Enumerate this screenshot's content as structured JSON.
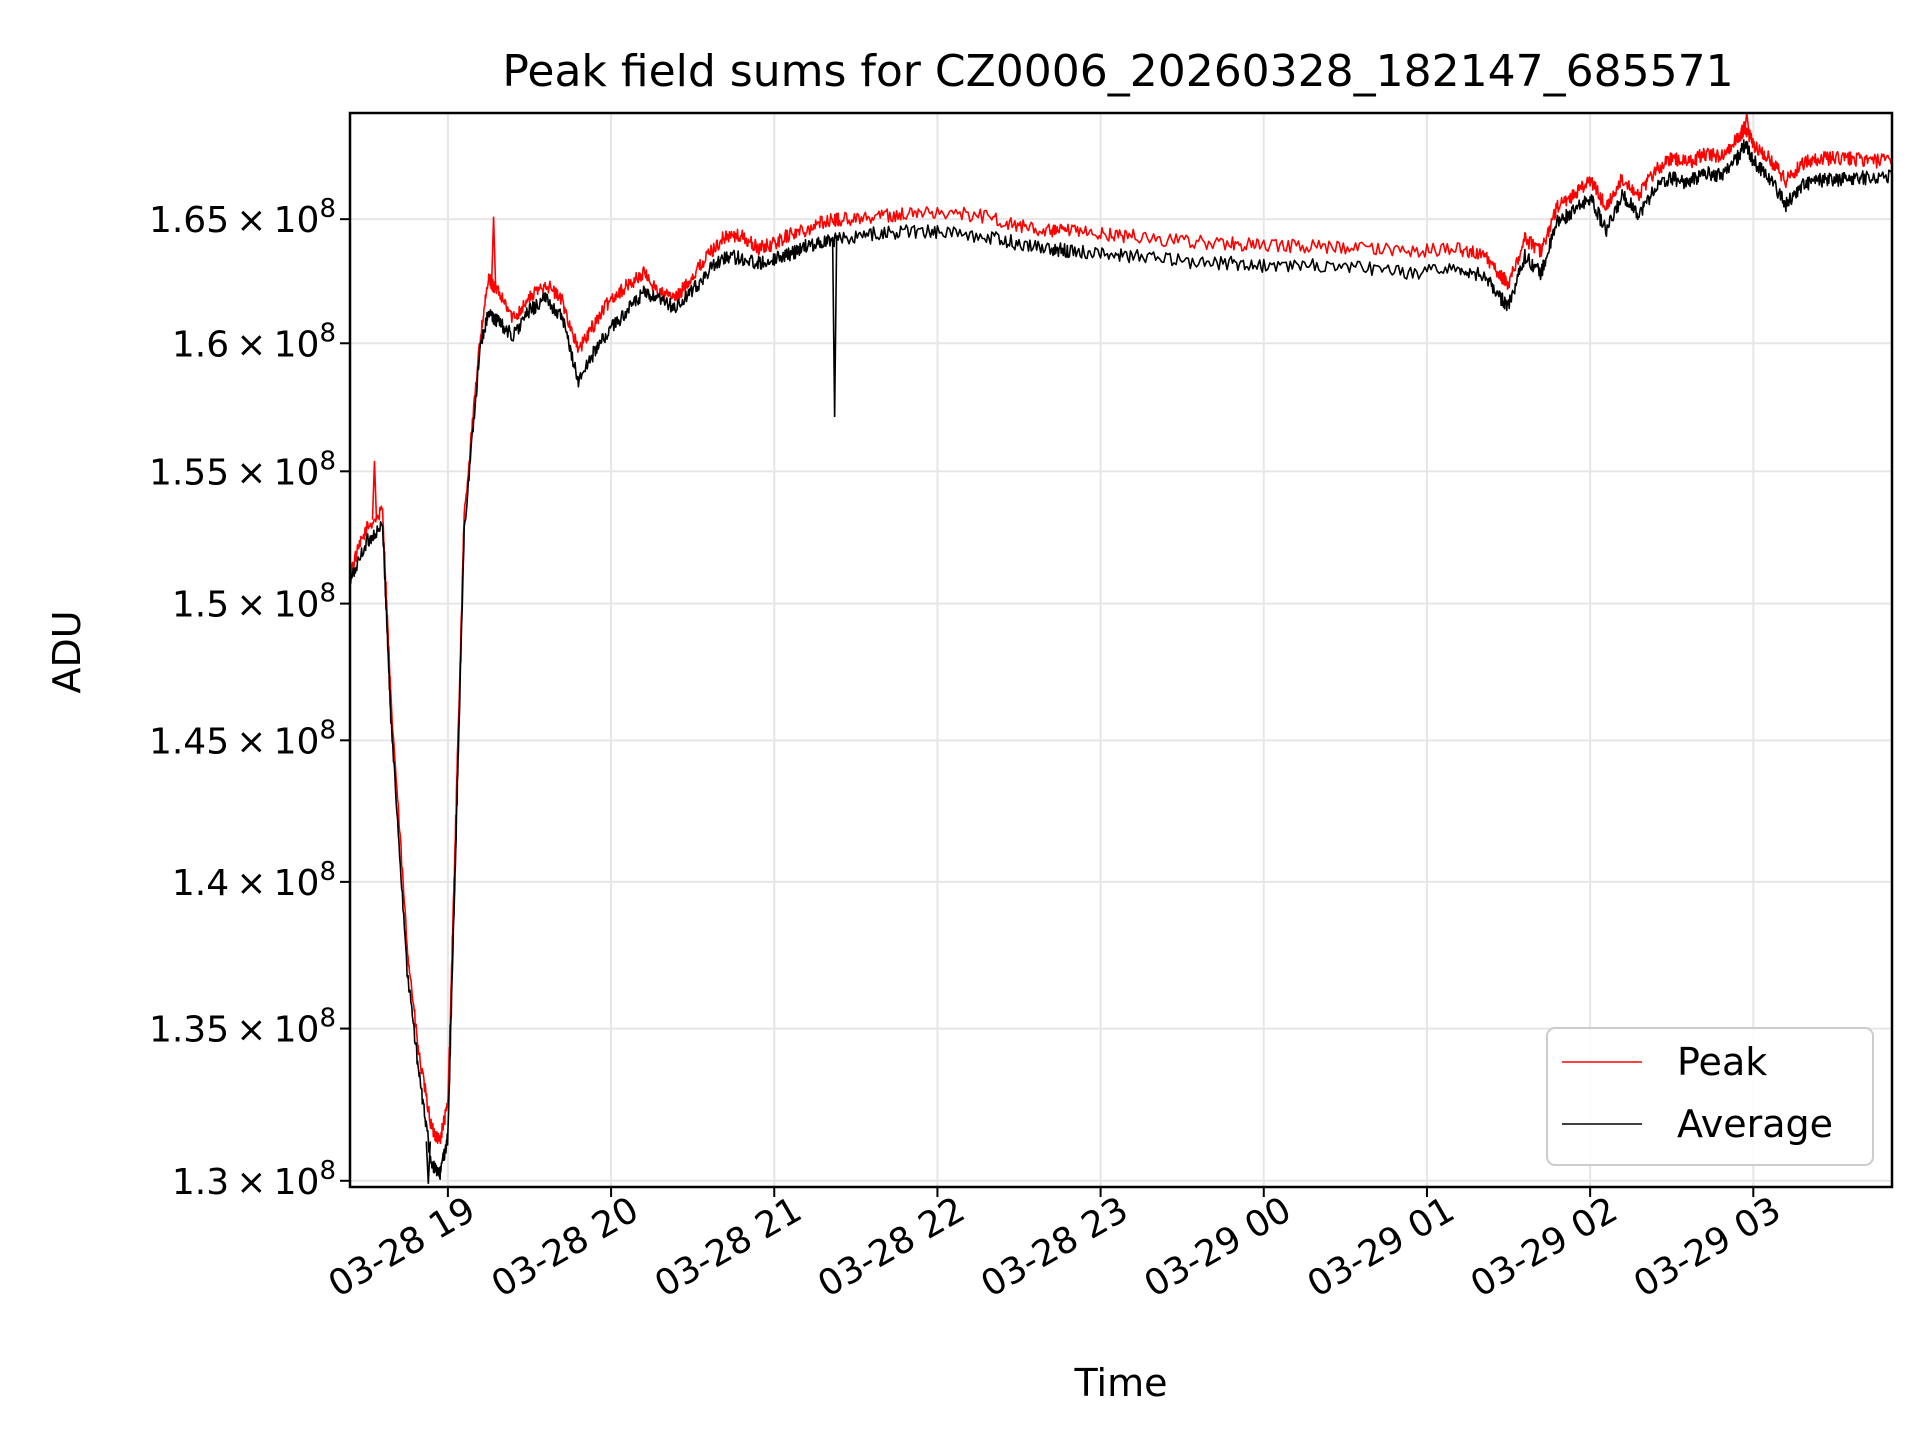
{
  "chart_data": {
    "type": "line",
    "title": "Peak field sums for CZ0006_20260328_182147_685571",
    "xlabel": "Time",
    "ylabel": "ADU",
    "yscale": "log",
    "ylim": [
      129800000,
      169400000
    ],
    "xlim_hours": [
      18.4,
      27.85
    ],
    "grid": true,
    "legend_position": "lower-right",
    "x_ticks": [
      {
        "hours": 19,
        "label": "03-28 19"
      },
      {
        "hours": 20,
        "label": "03-28 20"
      },
      {
        "hours": 21,
        "label": "03-28 21"
      },
      {
        "hours": 22,
        "label": "03-28 22"
      },
      {
        "hours": 23,
        "label": "03-28 23"
      },
      {
        "hours": 24,
        "label": "03-29 00"
      },
      {
        "hours": 25,
        "label": "03-29 01"
      },
      {
        "hours": 26,
        "label": "03-29 02"
      },
      {
        "hours": 27,
        "label": "03-29 03"
      }
    ],
    "y_ticks": [
      {
        "value": 130000000,
        "mantissa": "1.3",
        "exponent": "8"
      },
      {
        "value": 135000000,
        "mantissa": "1.35",
        "exponent": "8"
      },
      {
        "value": 140000000,
        "mantissa": "1.4",
        "exponent": "8"
      },
      {
        "value": 145000000,
        "mantissa": "1.45",
        "exponent": "8"
      },
      {
        "value": 150000000,
        "mantissa": "1.5",
        "exponent": "8"
      },
      {
        "value": 155000000,
        "mantissa": "1.55",
        "exponent": "8"
      },
      {
        "value": 160000000,
        "mantissa": "1.6",
        "exponent": "8"
      },
      {
        "value": 165000000,
        "mantissa": "1.65",
        "exponent": "8"
      }
    ],
    "series": [
      {
        "name": "Peak",
        "color": "#ff0000",
        "x_hours": [
          18.4,
          18.5,
          18.6,
          18.65,
          18.75,
          18.82,
          18.9,
          18.95,
          19.0,
          19.05,
          19.1,
          19.2,
          19.25,
          19.3,
          19.4,
          19.5,
          19.6,
          19.7,
          19.8,
          19.9,
          20.0,
          20.1,
          20.2,
          20.3,
          20.4,
          20.5,
          20.6,
          20.7,
          20.8,
          20.9,
          21.0,
          21.1,
          21.2,
          21.3,
          21.4,
          21.6,
          21.8,
          22.0,
          22.3,
          22.5,
          22.7,
          22.8,
          23.0,
          23.2,
          23.5,
          23.8,
          24.0,
          24.3,
          24.6,
          24.9,
          25.2,
          25.35,
          25.45,
          25.5,
          25.6,
          25.7,
          25.8,
          25.9,
          26.0,
          26.1,
          26.2,
          26.3,
          26.4,
          26.5,
          26.6,
          26.7,
          26.8,
          26.9,
          26.95,
          27.0,
          27.1,
          27.2,
          27.3,
          27.4,
          27.5,
          27.6,
          27.7,
          27.85
        ],
        "values": [
          151200000,
          152800000,
          153500000,
          146500000,
          137800000,
          134200000,
          131700000,
          131300000,
          132500000,
          142500000,
          153300000,
          160300000,
          162600000,
          162100000,
          161000000,
          161800000,
          162400000,
          161700000,
          159700000,
          160800000,
          161800000,
          162300000,
          162800000,
          162000000,
          161800000,
          162700000,
          163600000,
          164300000,
          164300000,
          163800000,
          164000000,
          164400000,
          164600000,
          164900000,
          165000000,
          165100000,
          165200000,
          165300000,
          165100000,
          164700000,
          164500000,
          164500000,
          164400000,
          164300000,
          164100000,
          164000000,
          163900000,
          163900000,
          163800000,
          163700000,
          163800000,
          163500000,
          162700000,
          162400000,
          164200000,
          163700000,
          165500000,
          166000000,
          166600000,
          165500000,
          166700000,
          166000000,
          167000000,
          167500000,
          167300000,
          167700000,
          167600000,
          168300000,
          168800000,
          168100000,
          167500000,
          166600000,
          167300000,
          167500000,
          167500000,
          167500000,
          167400000,
          167400000
        ],
        "spikes": [
          {
            "x_hours": 18.55,
            "value": 155400000
          },
          {
            "x_hours": 19.28,
            "value": 165100000
          },
          {
            "x_hours": 20.95,
            "value": 164000000
          },
          {
            "x_hours": 26.96,
            "value": 169400000
          }
        ]
      },
      {
        "name": "Average",
        "color": "#000000",
        "x_hours": [
          18.4,
          18.5,
          18.6,
          18.65,
          18.75,
          18.82,
          18.9,
          18.95,
          19.0,
          19.05,
          19.1,
          19.2,
          19.25,
          19.3,
          19.4,
          19.5,
          19.6,
          19.7,
          19.8,
          19.9,
          20.0,
          20.1,
          20.2,
          20.3,
          20.4,
          20.5,
          20.6,
          20.7,
          20.8,
          20.9,
          21.0,
          21.1,
          21.2,
          21.3,
          21.4,
          21.6,
          21.8,
          22.0,
          22.3,
          22.5,
          22.7,
          22.8,
          23.0,
          23.2,
          23.5,
          23.8,
          24.0,
          24.3,
          24.6,
          24.9,
          25.2,
          25.35,
          25.45,
          25.5,
          25.6,
          25.7,
          25.8,
          25.9,
          26.0,
          26.1,
          26.2,
          26.3,
          26.4,
          26.5,
          26.6,
          26.7,
          26.8,
          26.9,
          26.95,
          27.0,
          27.1,
          27.2,
          27.3,
          27.4,
          27.5,
          27.6,
          27.7,
          27.85
        ],
        "values": [
          150800000,
          152300000,
          152900000,
          145800000,
          137000000,
          133600000,
          130500000,
          130200000,
          131400000,
          141500000,
          152700000,
          160000000,
          161200000,
          160900000,
          160300000,
          161300000,
          161800000,
          161000000,
          158500000,
          159700000,
          160600000,
          161300000,
          162000000,
          161700000,
          161400000,
          162100000,
          162900000,
          163500000,
          163400000,
          163200000,
          163400000,
          163600000,
          163900000,
          164100000,
          164200000,
          164400000,
          164500000,
          164500000,
          164300000,
          164000000,
          163800000,
          163700000,
          163600000,
          163500000,
          163300000,
          163200000,
          163100000,
          163100000,
          163000000,
          162800000,
          163000000,
          162700000,
          161800000,
          161500000,
          163500000,
          162800000,
          164900000,
          165300000,
          165900000,
          164500000,
          166000000,
          165200000,
          166300000,
          166700000,
          166500000,
          166900000,
          166800000,
          167500000,
          168100000,
          167400000,
          166700000,
          165600000,
          166400000,
          166600000,
          166600000,
          166700000,
          166700000,
          166800000
        ],
        "spikes": [
          {
            "x_hours": 21.37,
            "value": 157100000
          },
          {
            "x_hours": 18.88,
            "value": 129900000
          }
        ]
      }
    ]
  }
}
